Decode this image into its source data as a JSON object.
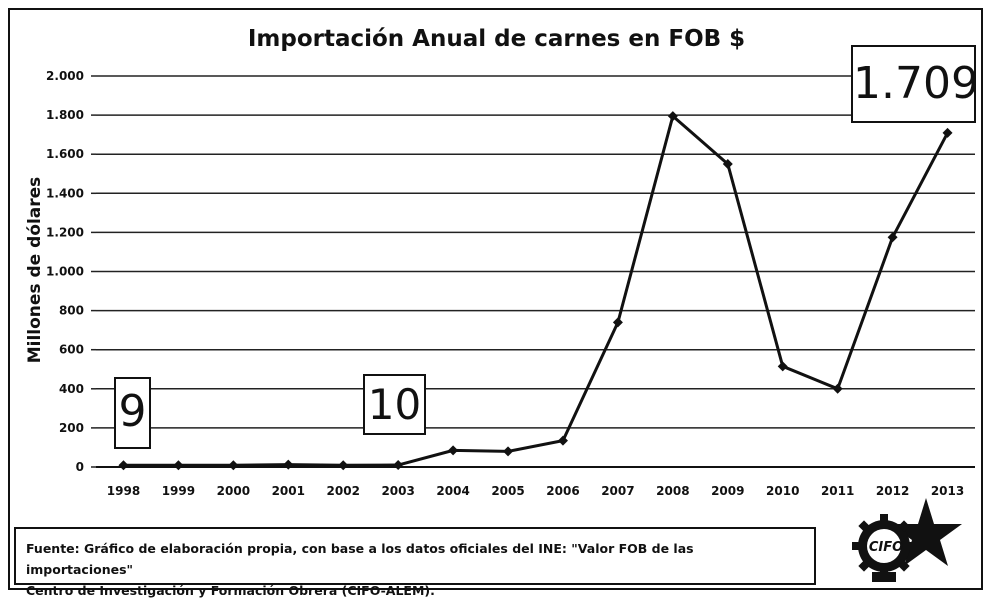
{
  "chart_data": {
    "type": "line",
    "title": "Importación Anual de carnes en FOB $",
    "ylabel": "Millones de dólares",
    "xlabel": "",
    "categories": [
      "1998",
      "1999",
      "2000",
      "2001",
      "2002",
      "2003",
      "2004",
      "2005",
      "2006",
      "2007",
      "2008",
      "2009",
      "2010",
      "2011",
      "2012",
      "2013"
    ],
    "series": [
      {
        "values": [
          9,
          9,
          9,
          12,
          9,
          10,
          85,
          80,
          135,
          740,
          1795,
          1550,
          515,
          400,
          1175,
          1709
        ]
      }
    ],
    "ylim": [
      0,
      2000
    ],
    "yticks": [
      0,
      200,
      400,
      600,
      800,
      1000,
      1200,
      1400,
      1600,
      1800,
      2000
    ],
    "ytick_labels": [
      "0",
      "200",
      "400",
      "600",
      "800",
      "1.000",
      "1.200",
      "1.400",
      "1.600",
      "1.800",
      "2.000"
    ],
    "grid": true,
    "line_color": "#111111",
    "annotations": [
      {
        "text": "9",
        "year": "1998"
      },
      {
        "text": "10",
        "year": "2003"
      },
      {
        "text": "1.709",
        "year": "2013"
      }
    ]
  },
  "source": {
    "line1": "Fuente: Gráfico de elaboración propia, con base a los datos oficiales del  INE: \"Valor FOB de las importaciones\"",
    "line2": "Centro de Investigación y Formación Obrera (CIFO-ALEM)."
  },
  "logo": {
    "text": "CIFO",
    "icon": "gear-star-logo"
  }
}
